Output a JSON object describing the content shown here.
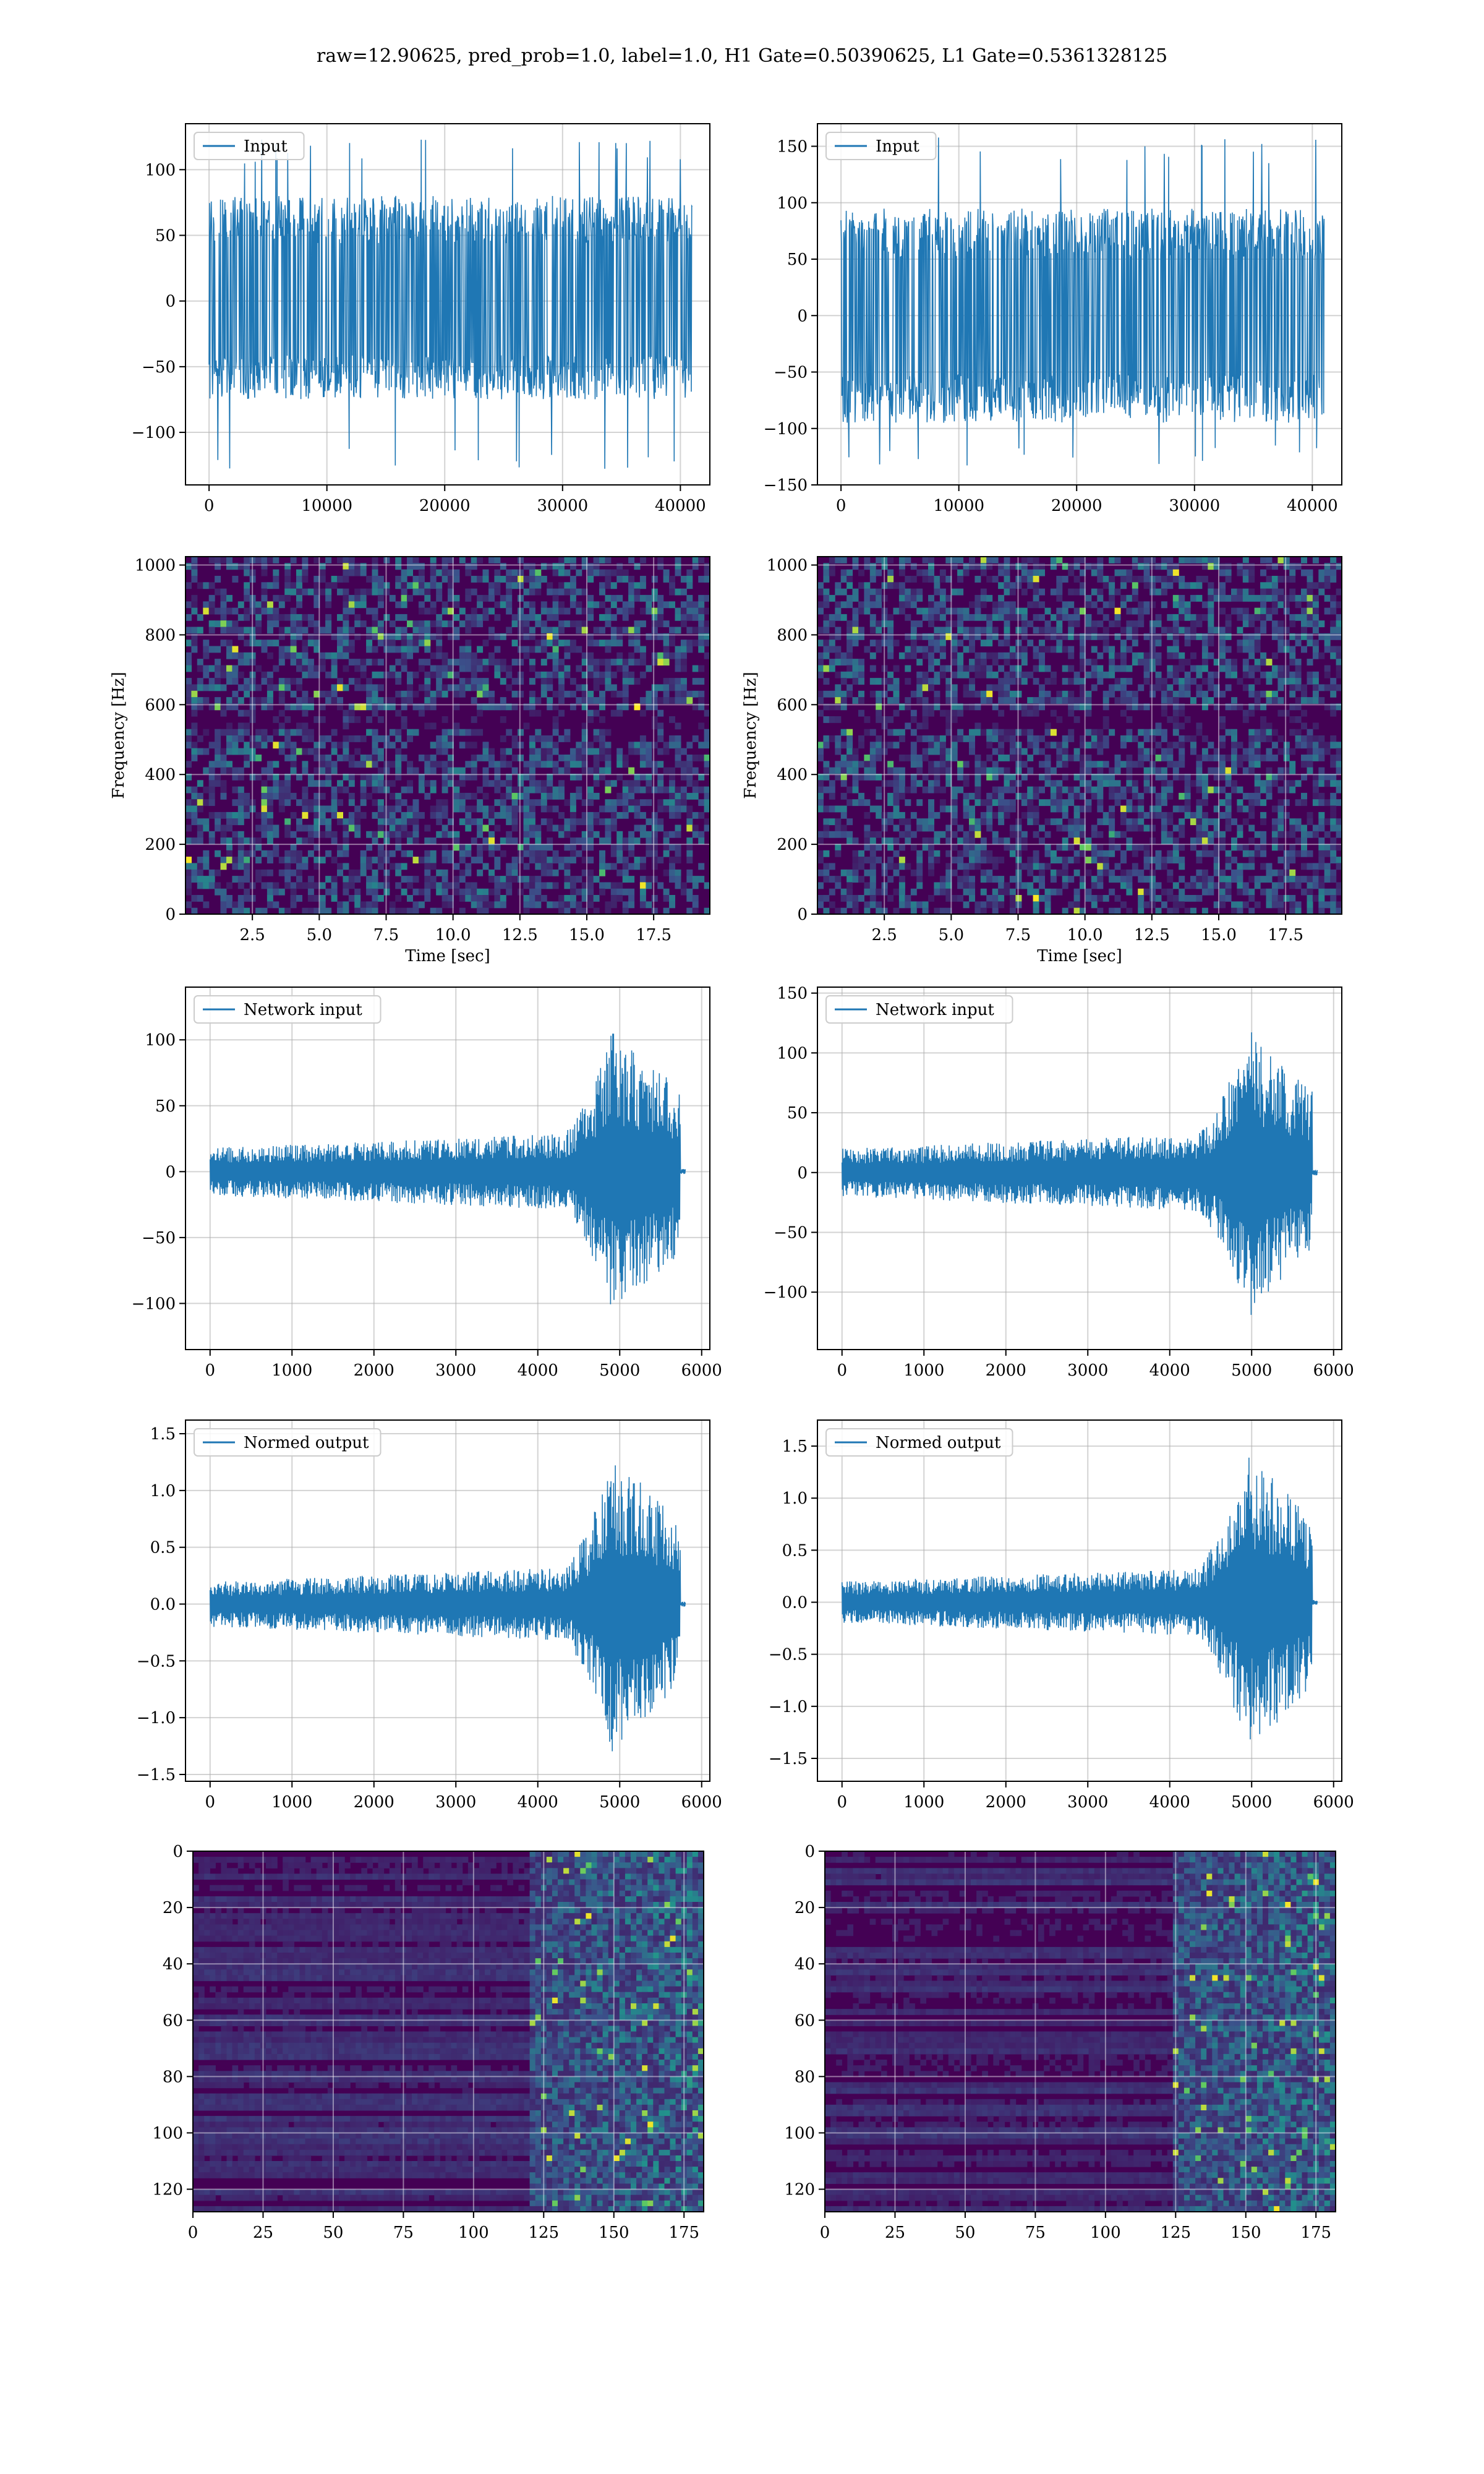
{
  "figure_title": "raw=12.90625, pred_prob=1.0, label=1.0, H1 Gate=0.50390625, L1 Gate=0.5361328125",
  "colors": {
    "line": "#1f77b4",
    "grid": "#b0b0b0",
    "viridis_bg": "#440154",
    "viridis_mid": "#31688e",
    "viridis_teal": "#21918c",
    "viridis_green": "#5ec962",
    "viridis_yellow": "#fde725"
  },
  "chart_data": [
    {
      "type": "line",
      "panel": "input_h1",
      "legend": "Input",
      "legend_loc": "upper-left",
      "xlim": [
        -2000,
        42500
      ],
      "ylim": [
        -140,
        135
      ],
      "xticks": [
        "0",
        "10000",
        "20000",
        "30000",
        "40000"
      ],
      "yticks": [
        "100",
        "50",
        "0",
        "−50",
        "−100"
      ],
      "x_range": [
        0,
        41000
      ],
      "y_envelope": [
        -75,
        80
      ],
      "peak_min": -130,
      "peak_max": 123,
      "trend": "stationary noise",
      "grid": true
    },
    {
      "type": "line",
      "panel": "input_l1",
      "legend": "Input",
      "legend_loc": "upper-left",
      "xlim": [
        -2000,
        42500
      ],
      "ylim": [
        -150,
        170
      ],
      "xticks": [
        "0",
        "10000",
        "20000",
        "30000",
        "40000"
      ],
      "yticks": [
        "150",
        "100",
        "50",
        "0",
        "−50",
        "−100",
        "−150"
      ],
      "x_range": [
        0,
        41000
      ],
      "y_envelope": [
        -95,
        95
      ],
      "peak_min": -135,
      "peak_max": 158,
      "trend": "stationary noise",
      "grid": true
    },
    {
      "type": "heatmap",
      "panel": "spectrogram_h1",
      "xlabel": "Time [sec]",
      "ylabel": "Frequency [Hz]",
      "xlim": [
        0,
        19.6
      ],
      "ylim": [
        0,
        1024
      ],
      "xticks": [
        "2.5",
        "5.0",
        "7.5",
        "10.0",
        "12.5",
        "15.0",
        "17.5"
      ],
      "yticks": [
        "0",
        "200",
        "400",
        "600",
        "800",
        "1000"
      ],
      "colormap": "viridis",
      "grid": true
    },
    {
      "type": "heatmap",
      "panel": "spectrogram_l1",
      "xlabel": "Time [sec]",
      "ylabel": "Frequency [Hz]",
      "xlim": [
        0,
        19.6
      ],
      "ylim": [
        0,
        1024
      ],
      "xticks": [
        "2.5",
        "5.0",
        "7.5",
        "10.0",
        "12.5",
        "15.0",
        "17.5"
      ],
      "yticks": [
        "0",
        "200",
        "400",
        "600",
        "800",
        "1000"
      ],
      "colormap": "viridis",
      "grid": true
    },
    {
      "type": "line",
      "panel": "network_input_h1",
      "legend": "Network input",
      "legend_loc": "upper-left",
      "xlim": [
        -300,
        6100
      ],
      "ylim": [
        -135,
        140
      ],
      "xticks": [
        "0",
        "1000",
        "2000",
        "3000",
        "4000",
        "5000",
        "6000"
      ],
      "yticks": [
        "100",
        "50",
        "0",
        "−50",
        "−100"
      ],
      "x_range": [
        0,
        5800
      ],
      "y_envelope_start": 18,
      "y_envelope_peak": 115,
      "burst_start": 4300,
      "burst_peak": 4950,
      "burst_end": 5740,
      "trend": "chirp-like growth then cutoff",
      "grid": true
    },
    {
      "type": "line",
      "panel": "network_input_l1",
      "legend": "Network input",
      "legend_loc": "upper-left",
      "xlim": [
        -300,
        6100
      ],
      "ylim": [
        -148,
        155
      ],
      "xticks": [
        "0",
        "1000",
        "2000",
        "3000",
        "4000",
        "5000",
        "6000"
      ],
      "yticks": [
        "150",
        "100",
        "50",
        "0",
        "−50",
        "−100"
      ],
      "x_range": [
        0,
        5800
      ],
      "y_envelope_start": 20,
      "y_envelope_peak": 125,
      "burst_start": 4300,
      "burst_peak": 5000,
      "burst_end": 5740,
      "trend": "chirp-like growth then cutoff",
      "grid": true
    },
    {
      "type": "line",
      "panel": "normed_output_h1",
      "legend": "Normed output",
      "legend_loc": "upper-left",
      "xlim": [
        -300,
        6100
      ],
      "ylim": [
        -1.56,
        1.62
      ],
      "xticks": [
        "0",
        "1000",
        "2000",
        "3000",
        "4000",
        "5000",
        "6000"
      ],
      "yticks": [
        "1.5",
        "1.0",
        "0.5",
        "0.0",
        "−0.5",
        "−1.0",
        "−1.5"
      ],
      "x_range": [
        0,
        5800
      ],
      "y_envelope_start": 0.2,
      "y_envelope_peak": 1.4,
      "burst_start": 4300,
      "burst_peak": 4950,
      "burst_end": 5740,
      "trend": "chirp-like growth then cutoff",
      "grid": true
    },
    {
      "type": "line",
      "panel": "normed_output_l1",
      "legend": "Normed output",
      "legend_loc": "upper-left",
      "xlim": [
        -300,
        6100
      ],
      "ylim": [
        -1.72,
        1.75
      ],
      "xticks": [
        "0",
        "1000",
        "2000",
        "3000",
        "4000",
        "5000",
        "6000"
      ],
      "yticks": [
        "1.5",
        "1.0",
        "0.5",
        "0.0",
        "−0.5",
        "−1.0",
        "−1.5"
      ],
      "x_range": [
        0,
        5800
      ],
      "y_envelope_start": 0.2,
      "y_envelope_peak": 1.55,
      "burst_start": 4300,
      "burst_peak": 5000,
      "burst_end": 5740,
      "trend": "chirp-like growth then cutoff",
      "grid": true
    },
    {
      "type": "heatmap",
      "panel": "features_h1",
      "xlim": [
        0,
        182
      ],
      "ylim": [
        128,
        0
      ],
      "xticks": [
        "0",
        "25",
        "50",
        "75",
        "100",
        "125",
        "150",
        "175"
      ],
      "yticks": [
        "0",
        "20",
        "40",
        "60",
        "80",
        "100",
        "120"
      ],
      "colormap": "viridis",
      "activity_start": 120,
      "grid": true
    },
    {
      "type": "heatmap",
      "panel": "features_l1",
      "xlim": [
        0,
        182
      ],
      "ylim": [
        128,
        0
      ],
      "xticks": [
        "0",
        "25",
        "50",
        "75",
        "100",
        "125",
        "150",
        "175"
      ],
      "yticks": [
        "0",
        "20",
        "40",
        "60",
        "80",
        "100",
        "120"
      ],
      "colormap": "viridis",
      "activity_start": 124,
      "grid": true
    }
  ]
}
